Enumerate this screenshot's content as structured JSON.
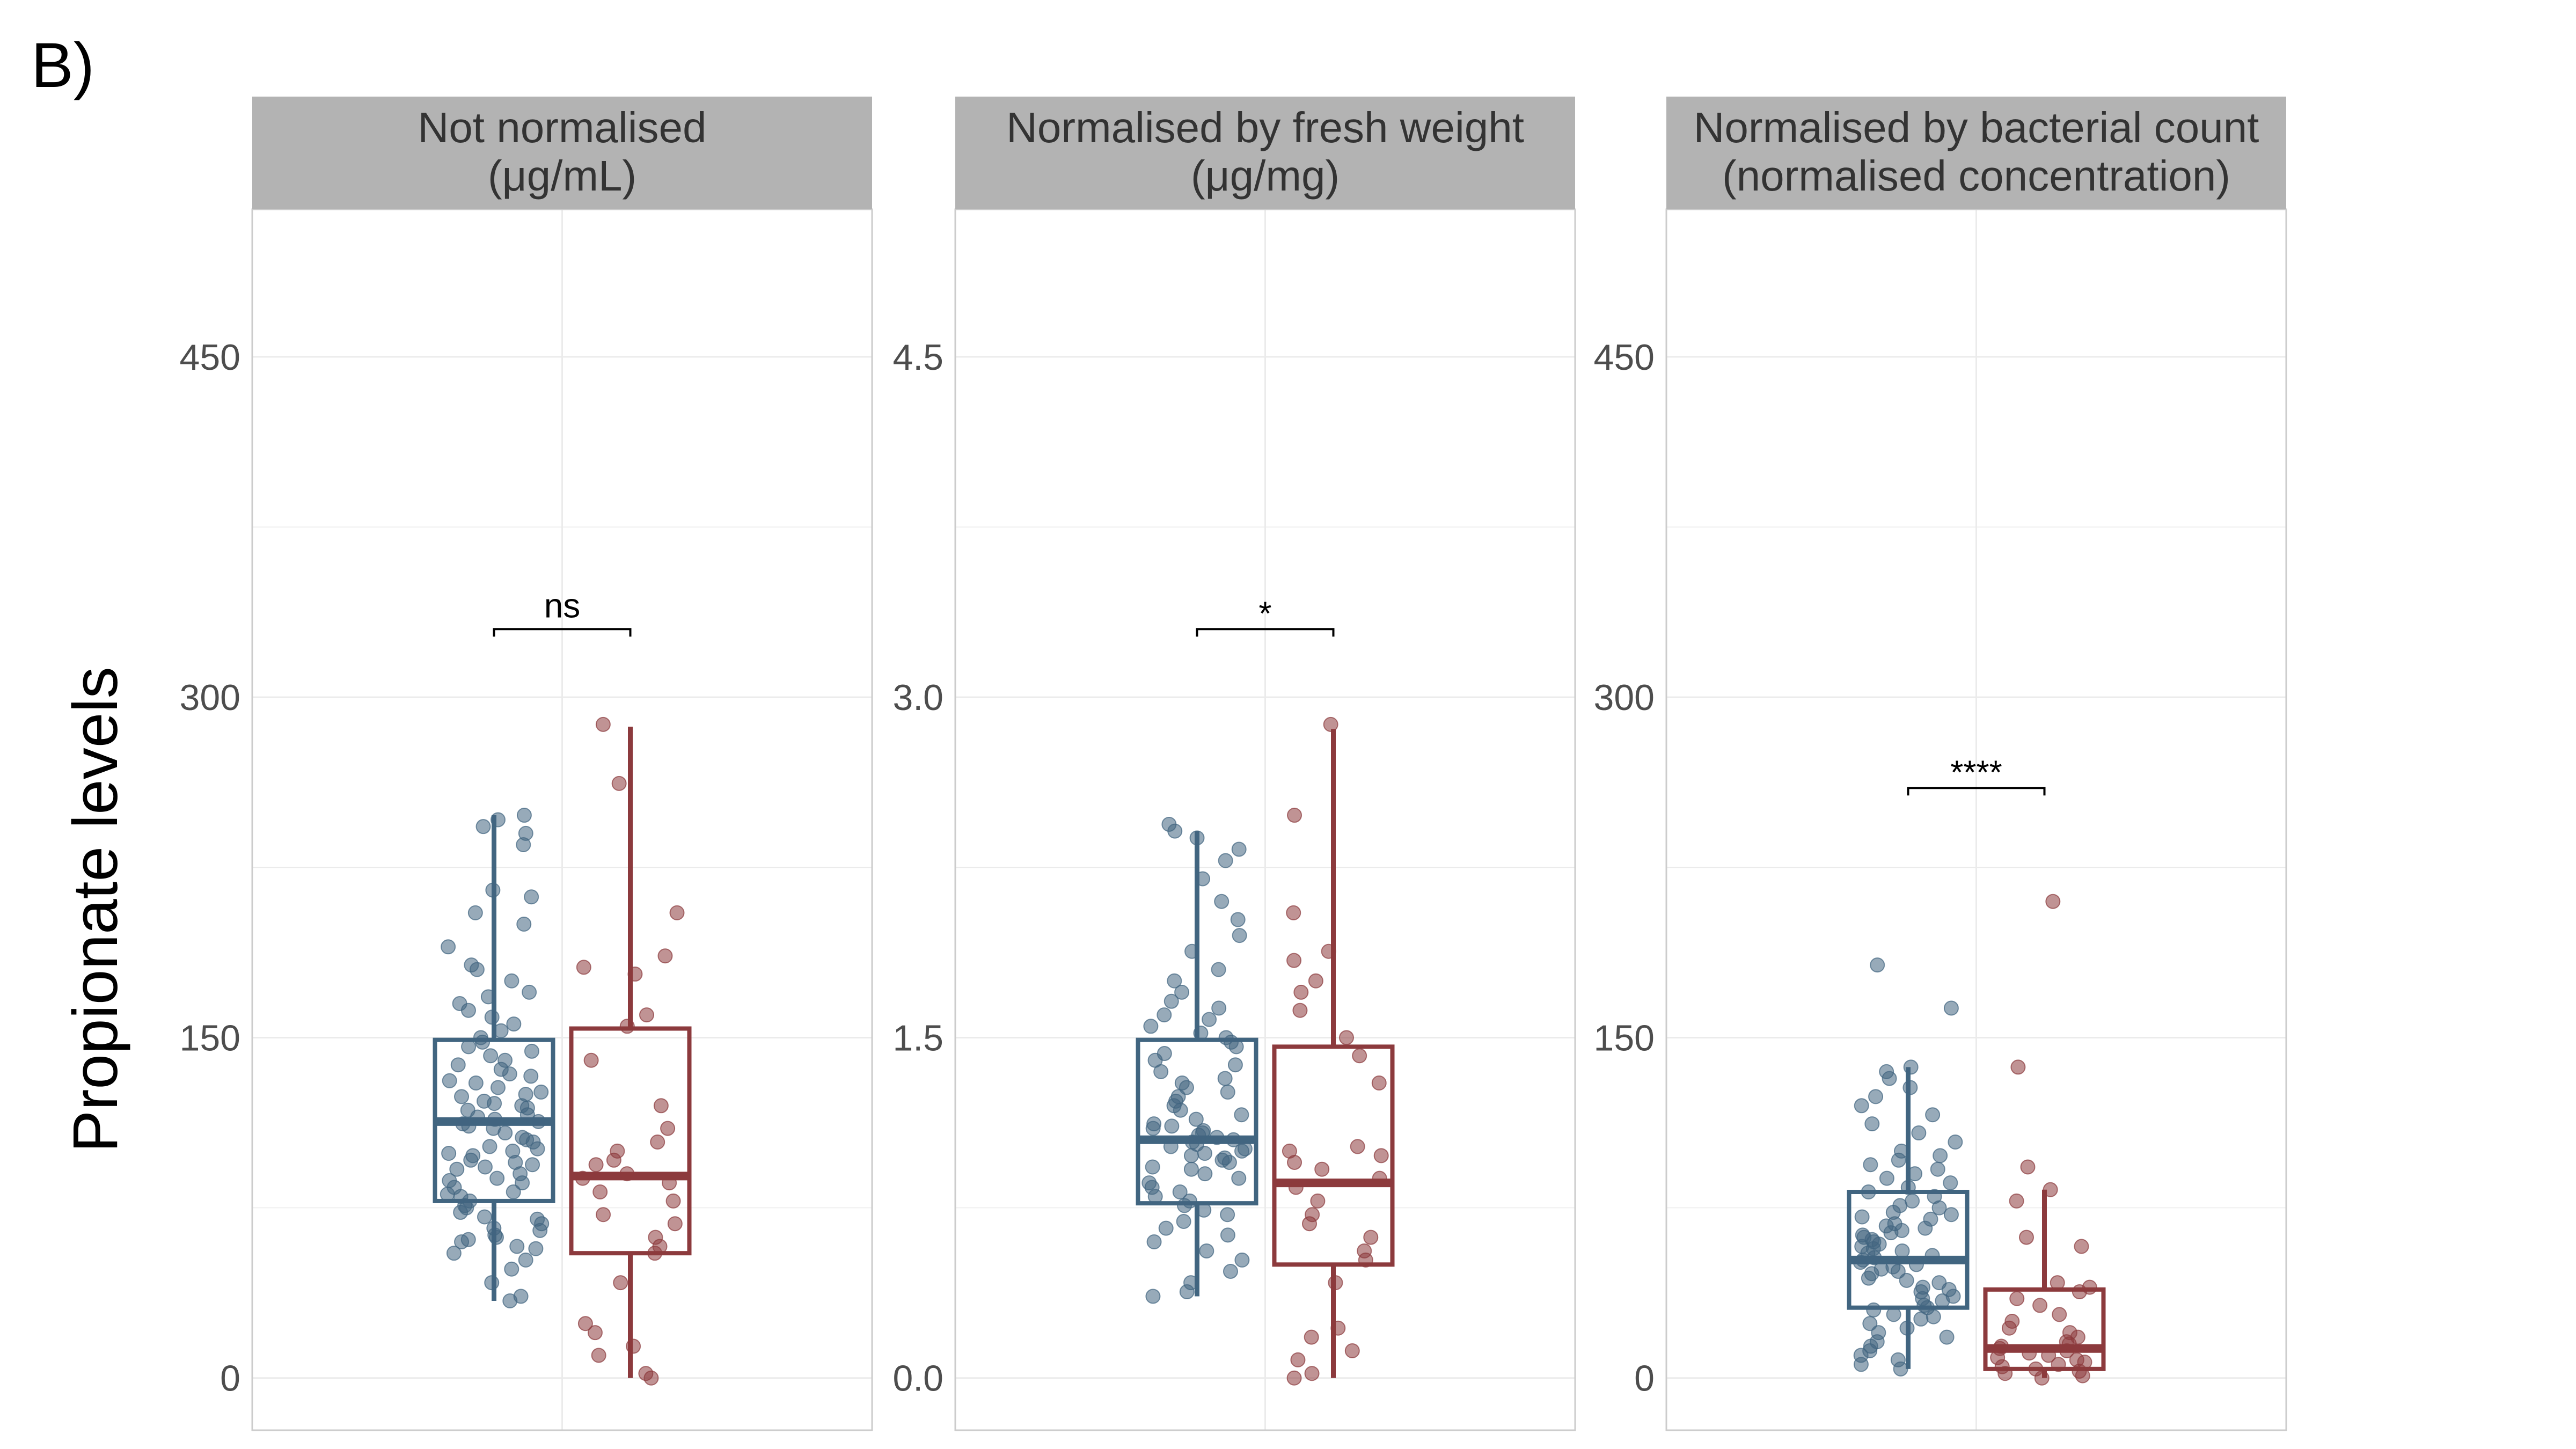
{
  "figure": {
    "panel_letter": "B)",
    "ylabel": "Propionate levels"
  },
  "colors": {
    "group1": "#416580",
    "group2": "#8c3a3d",
    "strip_bg": "#b3b3b3",
    "grid": "#ebebeb",
    "panel_border": "#cccccc"
  },
  "chart_data": [
    {
      "type": "boxplot",
      "strip": [
        "Not normalised",
        "(μg/mL)"
      ],
      "ylim": [
        -23,
        515
      ],
      "y_ticks": [
        0,
        150,
        300,
        450
      ],
      "y_tick_labels": [
        "0",
        "150",
        "300",
        "450"
      ],
      "significance": {
        "label": "ns",
        "y": 330
      },
      "series": [
        {
          "group": 1,
          "stats": {
            "min": 34,
            "q1": 78,
            "median": 113,
            "q3": 149,
            "max": 248
          },
          "points": [
            34,
            36,
            42,
            48,
            52,
            55,
            57,
            58,
            60,
            61,
            62,
            63,
            65,
            66,
            68,
            70,
            71,
            73,
            75,
            76,
            78,
            80,
            81,
            82,
            84,
            86,
            87,
            88,
            90,
            92,
            93,
            94,
            95,
            96,
            98,
            99,
            100,
            101,
            102,
            104,
            105,
            106,
            108,
            110,
            111,
            112,
            113,
            114,
            115,
            116,
            118,
            119,
            120,
            121,
            122,
            124,
            125,
            126,
            128,
            130,
            131,
            133,
            134,
            136,
            138,
            140,
            142,
            144,
            146,
            148,
            150,
            153,
            156,
            159,
            162,
            165,
            168,
            170,
            175,
            180,
            182,
            190,
            200,
            205,
            212,
            215,
            235,
            240,
            243,
            246,
            248
          ]
        },
        {
          "group": 2,
          "stats": {
            "min": 0,
            "q1": 55,
            "median": 89,
            "q3": 154,
            "max": 287
          },
          "points": [
            0,
            2,
            10,
            14,
            20,
            24,
            42,
            55,
            58,
            62,
            68,
            72,
            78,
            82,
            86,
            88,
            90,
            94,
            96,
            100,
            104,
            110,
            120,
            140,
            155,
            160,
            178,
            181,
            186,
            205,
            262,
            288
          ]
        }
      ]
    },
    {
      "type": "boxplot",
      "strip": [
        "Normalised by fresh weight",
        "(μg/mg)"
      ],
      "ylim": [
        -0.23,
        5.15
      ],
      "y_ticks": [
        0,
        1.5,
        3,
        4.5
      ],
      "y_tick_labels": [
        "0.0",
        "1.5",
        "3.0",
        "4.5"
      ],
      "significance": {
        "label": "*",
        "y": 3.3
      },
      "series": [
        {
          "group": 1,
          "stats": {
            "min": 0.36,
            "q1": 0.77,
            "median": 1.05,
            "q3": 1.49,
            "max": 2.41
          },
          "points": [
            0.36,
            0.38,
            0.42,
            0.47,
            0.52,
            0.56,
            0.6,
            0.63,
            0.66,
            0.69,
            0.72,
            0.74,
            0.76,
            0.78,
            0.8,
            0.82,
            0.84,
            0.86,
            0.88,
            0.9,
            0.92,
            0.93,
            0.95,
            0.96,
            0.97,
            0.98,
            0.99,
            1.0,
            1.01,
            1.02,
            1.03,
            1.04,
            1.05,
            1.06,
            1.07,
            1.08,
            1.09,
            1.1,
            1.11,
            1.12,
            1.14,
            1.16,
            1.18,
            1.2,
            1.22,
            1.24,
            1.26,
            1.28,
            1.3,
            1.32,
            1.35,
            1.38,
            1.4,
            1.43,
            1.46,
            1.48,
            1.5,
            1.52,
            1.55,
            1.58,
            1.6,
            1.63,
            1.66,
            1.7,
            1.75,
            1.8,
            1.88,
            1.95,
            2.02,
            2.1,
            2.2,
            2.28,
            2.33,
            2.38,
            2.41,
            2.44
          ]
        },
        {
          "group": 2,
          "stats": {
            "min": 0.0,
            "q1": 0.5,
            "median": 0.86,
            "q3": 1.46,
            "max": 2.86
          },
          "points": [
            0.0,
            0.02,
            0.08,
            0.12,
            0.18,
            0.22,
            0.42,
            0.52,
            0.56,
            0.62,
            0.68,
            0.72,
            0.78,
            0.84,
            0.88,
            0.92,
            0.95,
            0.98,
            1.0,
            1.02,
            1.3,
            1.42,
            1.5,
            1.62,
            1.7,
            1.75,
            1.84,
            1.88,
            2.05,
            2.48,
            2.88
          ]
        }
      ]
    },
    {
      "type": "boxplot",
      "strip": [
        "Normalised by bacterial count",
        "(normalised concentration)"
      ],
      "ylim": [
        -23,
        515
      ],
      "y_ticks": [
        0,
        150,
        300,
        450
      ],
      "y_tick_labels": [
        "0",
        "150",
        "300",
        "450"
      ],
      "significance": {
        "label": "****",
        "y": 260
      },
      "series": [
        {
          "group": 1,
          "stats": {
            "min": 4,
            "q1": 31,
            "median": 52,
            "q3": 82,
            "max": 137
          },
          "points": [
            4,
            6,
            8,
            10,
            12,
            14,
            16,
            18,
            20,
            22,
            24,
            26,
            27,
            28,
            30,
            31,
            32,
            34,
            35,
            36,
            38,
            39,
            40,
            42,
            43,
            44,
            46,
            47,
            48,
            49,
            50,
            51,
            52,
            53,
            54,
            55,
            56,
            57,
            58,
            59,
            60,
            61,
            62,
            63,
            64,
            65,
            66,
            67,
            68,
            70,
            71,
            72,
            73,
            75,
            76,
            78,
            80,
            82,
            84,
            86,
            88,
            90,
            92,
            94,
            96,
            98,
            100,
            104,
            108,
            112,
            116,
            120,
            124,
            128,
            132,
            135,
            137,
            163,
            182
          ]
        },
        {
          "group": 2,
          "stats": {
            "min": 0,
            "q1": 4,
            "median": 13,
            "q3": 39,
            "max": 83
          },
          "points": [
            0,
            1,
            2,
            3,
            4,
            5,
            6,
            7,
            8,
            9,
            10,
            11,
            12,
            13,
            14,
            15,
            16,
            18,
            20,
            22,
            25,
            28,
            32,
            35,
            38,
            40,
            42,
            58,
            62,
            78,
            83,
            93,
            137,
            210
          ]
        }
      ]
    }
  ]
}
